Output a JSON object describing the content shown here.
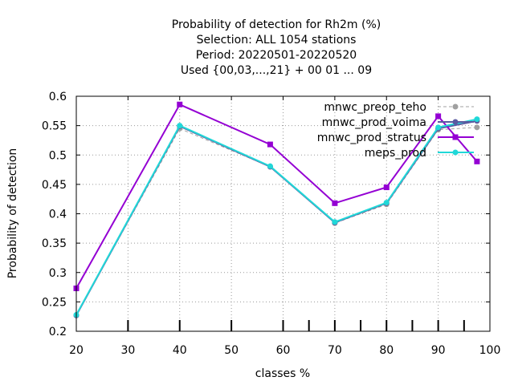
{
  "chart_data": {
    "type": "line",
    "title_lines": [
      "Probability of detection  for Rh2m (%)",
      "Selection: ALL    1054 stations",
      "Period: 20220501-20220520",
      "Used {00,03,...,21} + 00 01 ... 09"
    ],
    "xlabel": "classes %",
    "ylabel": "Probability of detection",
    "xlim": [
      20,
      100
    ],
    "ylim": [
      0.2,
      0.6
    ],
    "xticks": [
      20,
      30,
      40,
      50,
      60,
      70,
      80,
      90,
      100
    ],
    "yticks": [
      0.2,
      0.25,
      0.3,
      0.35,
      0.4,
      0.45,
      0.5,
      0.55,
      0.6
    ],
    "ytick_labels": [
      "0.2",
      "0.25",
      "0.3",
      "0.35",
      "0.4",
      "0.45",
      "0.5",
      "0.55",
      "0.6"
    ],
    "class_marks": [
      30,
      40,
      50,
      60,
      65,
      70,
      75,
      80,
      85,
      90,
      95
    ],
    "grid": true,
    "legend_position": "top-right",
    "series": [
      {
        "name": "mnwc_preop_teho",
        "color": "#a0a0a0",
        "dash": "4,3",
        "marker": "circle",
        "x": [
          20,
          40,
          57.5,
          70,
          80,
          90,
          97.5
        ],
        "y": [
          0.227,
          0.545,
          0.48,
          0.384,
          0.416,
          0.543,
          0.547
        ]
      },
      {
        "name": "mnwc_prod_voima",
        "color": "#5a5aa0",
        "dash": "",
        "marker": "circle",
        "x": [
          20,
          40,
          57.5,
          70,
          80,
          90,
          97.5
        ],
        "y": [
          0.227,
          0.549,
          0.48,
          0.385,
          0.418,
          0.545,
          0.558
        ]
      },
      {
        "name": "mnwc_prod_stratus",
        "color": "#9400d3",
        "dash": "",
        "marker": "square",
        "x": [
          20,
          40,
          57.5,
          70,
          80,
          90,
          97.5
        ],
        "y": [
          0.273,
          0.586,
          0.518,
          0.418,
          0.445,
          0.566,
          0.489
        ]
      },
      {
        "name": "meps_prod",
        "color": "#20d8d8",
        "dash": "",
        "marker": "circle",
        "x": [
          20,
          40,
          57.5,
          70,
          80,
          90,
          97.5
        ],
        "y": [
          0.228,
          0.55,
          0.481,
          0.386,
          0.419,
          0.547,
          0.561
        ]
      }
    ]
  }
}
